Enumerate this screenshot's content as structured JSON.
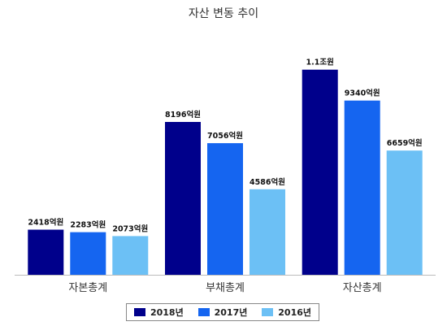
{
  "title": "자산 변동 추이",
  "colors": {
    "s2018": "#00008b",
    "s2017": "#1565f0",
    "s2016": "#6cc0f5"
  },
  "legend": [
    {
      "label": "2018년",
      "color_key": "s2018"
    },
    {
      "label": "2017년",
      "color_key": "s2017"
    },
    {
      "label": "2016년",
      "color_key": "s2016"
    }
  ],
  "chart_data": {
    "type": "bar",
    "title": "자산 변동 추이",
    "categories": [
      "자본총계",
      "부채총계",
      "자산총계"
    ],
    "series": [
      {
        "name": "2018년",
        "values": [
          2418,
          8196,
          11000
        ],
        "labels": [
          "2418억원",
          "8196억원",
          "1.1조원"
        ]
      },
      {
        "name": "2017년",
        "values": [
          2283,
          7056,
          9340
        ],
        "labels": [
          "2283억원",
          "7056억원",
          "9340억원"
        ]
      },
      {
        "name": "2016년",
        "values": [
          2073,
          4586,
          6659
        ],
        "labels": [
          "2073억원",
          "4586억원",
          "6659억원"
        ]
      }
    ],
    "legend_position": "bottom",
    "grid": false
  }
}
